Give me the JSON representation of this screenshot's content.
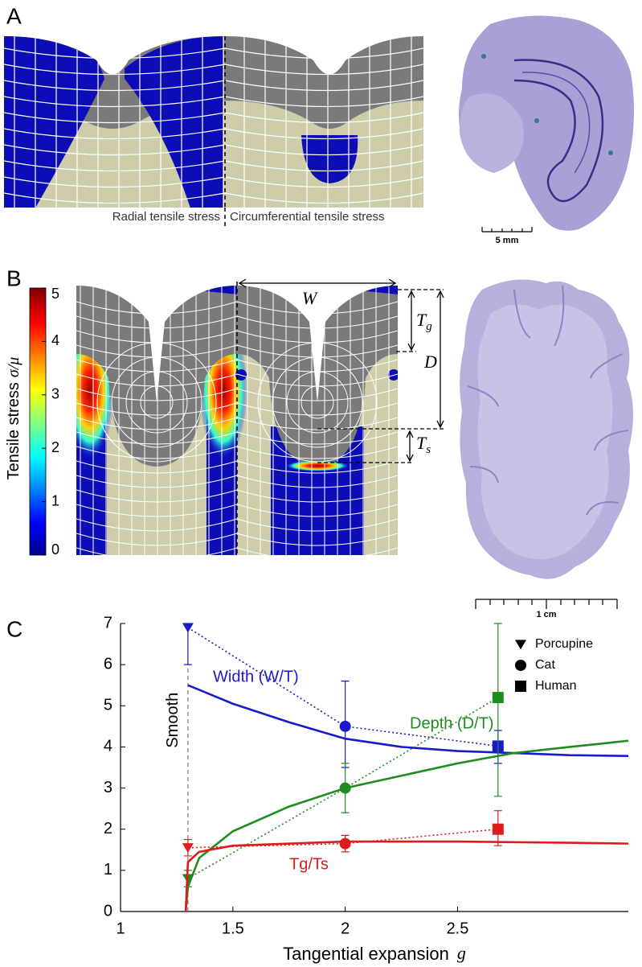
{
  "panels": {
    "a": {
      "label": "A",
      "caption_left": "Radial tensile stress",
      "caption_right": "Circumferential tensile stress",
      "scale": "5 mm"
    },
    "b": {
      "label": "B",
      "colorbar_title": "Tensile stress",
      "colorbar_var": "σ/μ",
      "colorbar_lim": [
        0,
        5
      ],
      "colorbar_ticks": [
        0,
        1,
        2,
        3,
        4,
        5
      ],
      "width": "W",
      "depth": "D",
      "tg": {
        "main": "T",
        "sub": "g"
      },
      "ts": {
        "main": "T",
        "sub": "s"
      },
      "scale": "1 cm"
    },
    "c": {
      "label": "C"
    }
  },
  "chart_data": {
    "type": "line",
    "xlabel": "Tangential expansion",
    "xlabel_var": "g",
    "xlim": [
      1,
      3.26
    ],
    "ylim": [
      0,
      7
    ],
    "xticks": [
      1,
      1.5,
      2,
      2.5
    ],
    "yticks": [
      0,
      1,
      2,
      3,
      4,
      5,
      6,
      7
    ],
    "annotation": "Smooth",
    "species": [
      "Porcupine",
      "Cat",
      "Human"
    ],
    "markers": [
      "triangle",
      "circle",
      "square"
    ],
    "observed_x": [
      1.3,
      2,
      2.68
    ],
    "series": [
      {
        "name": "Width (W/T)",
        "color": "#1a1acc",
        "x": [
          1.3,
          1.5,
          1.75,
          2,
          2.25,
          2.5,
          2.75,
          3,
          3.26
        ],
        "values": [
          5.5,
          5.05,
          4.6,
          4.2,
          4.0,
          3.9,
          3.85,
          3.8,
          3.78
        ],
        "observed": [
          6.9,
          4.5,
          4.02
        ],
        "observed_low": [
          6.0,
          3.5,
          3.6
        ],
        "observed_high": [
          7.0,
          5.6,
          4.4
        ]
      },
      {
        "name": "Depth (D/T)",
        "color": "#1e8c1e",
        "x": [
          1.29,
          1.3,
          1.35,
          1.5,
          1.75,
          2,
          2.25,
          2.5,
          2.75,
          3,
          3.26
        ],
        "values": [
          0,
          0.6,
          1.3,
          1.95,
          2.55,
          3.0,
          3.3,
          3.6,
          3.85,
          4.0,
          4.15
        ],
        "observed": [
          0.8,
          3.0,
          5.2
        ],
        "observed_low": [
          0.6,
          2.4,
          2.8
        ],
        "observed_high": [
          1.0,
          3.6,
          7.0
        ]
      },
      {
        "name": "Tg/Ts",
        "color": "#e01b1b",
        "x": [
          1.29,
          1.3,
          1.35,
          1.5,
          2,
          2.5,
          3,
          3.26
        ],
        "values": [
          0,
          1.2,
          1.45,
          1.6,
          1.7,
          1.7,
          1.67,
          1.65
        ],
        "observed": [
          1.55,
          1.65,
          2.0
        ],
        "observed_low": [
          1.35,
          1.45,
          1.6
        ],
        "observed_high": [
          1.75,
          1.85,
          2.45
        ]
      }
    ]
  }
}
